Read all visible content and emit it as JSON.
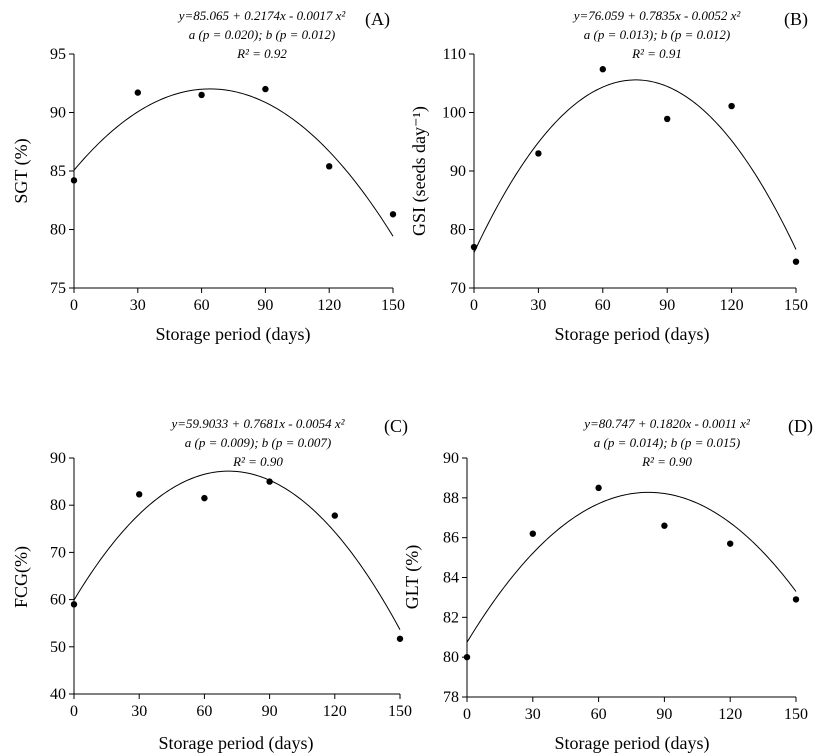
{
  "chart_data": [
    {
      "type": "scatter",
      "panel_label": "(A)",
      "equation": "y=85.065 + 0.2174x - 0.0017 x²",
      "significance": "a (p = 0.020); b (p = 0.012)",
      "r2": "R² = 0.92",
      "xlabel": "Storage period (days)",
      "ylabel": "SGT (%)",
      "xlim": [
        0,
        150
      ],
      "ylim": [
        75,
        95
      ],
      "xticks": [
        0,
        30,
        60,
        90,
        120,
        150
      ],
      "yticks": [
        75,
        80,
        85,
        90,
        95
      ],
      "x": [
        0,
        30,
        60,
        90,
        120,
        150
      ],
      "y": [
        84.2,
        91.7,
        91.5,
        92.0,
        85.4,
        81.3
      ],
      "fit": {
        "a": 85.065,
        "b": 0.2174,
        "c": -0.0017
      }
    },
    {
      "type": "scatter",
      "panel_label": "(B)",
      "equation": "y=76.059 + 0.7835x - 0.0052 x²",
      "significance": "a (p = 0.013); b (p = 0.012)",
      "r2": "R² = 0.91",
      "xlabel": "Storage period (days)",
      "ylabel": "GSI (seeds day⁻¹)",
      "xlim": [
        0,
        150
      ],
      "ylim": [
        70,
        110
      ],
      "xticks": [
        0,
        30,
        60,
        90,
        120,
        150
      ],
      "yticks": [
        70,
        80,
        90,
        100,
        110
      ],
      "x": [
        0,
        30,
        60,
        90,
        120,
        150
      ],
      "y": [
        77.0,
        93.0,
        107.4,
        98.9,
        101.1,
        74.5
      ],
      "fit": {
        "a": 76.059,
        "b": 0.7835,
        "c": -0.0052
      }
    },
    {
      "type": "scatter",
      "panel_label": "(C)",
      "equation": "y=59.9033 + 0.7681x - 0.0054 x²",
      "significance": "a (p = 0.009); b (p = 0.007)",
      "r2": "R² = 0.90",
      "xlabel": "Storage period (days)",
      "ylabel": "FCG(%)",
      "xlim": [
        0,
        150
      ],
      "ylim": [
        40,
        90
      ],
      "xticks": [
        0,
        30,
        60,
        90,
        120,
        150
      ],
      "yticks": [
        40,
        50,
        60,
        70,
        80,
        90
      ],
      "x": [
        0,
        30,
        60,
        90,
        120,
        150
      ],
      "y": [
        59.0,
        82.3,
        81.5,
        85.0,
        77.8,
        51.7
      ],
      "fit": {
        "a": 59.9033,
        "b": 0.7681,
        "c": -0.0054
      }
    },
    {
      "type": "scatter",
      "panel_label": "(D)",
      "equation": "y=80.747 + 0.1820x - 0.0011 x²",
      "significance": "a (p = 0.014); b (p = 0.015)",
      "r2": "R² = 0.90",
      "xlabel": "Storage period (days)",
      "ylabel": "GLT (%)",
      "xlim": [
        0,
        150
      ],
      "ylim": [
        78,
        90
      ],
      "xticks": [
        0,
        30,
        60,
        90,
        120,
        150
      ],
      "yticks": [
        78,
        80,
        82,
        84,
        86,
        88,
        90
      ],
      "x": [
        0,
        30,
        60,
        90,
        120,
        150
      ],
      "y": [
        80.0,
        86.2,
        88.5,
        86.6,
        85.7,
        82.9
      ],
      "fit": {
        "a": 80.747,
        "b": 0.182,
        "c": -0.0011
      }
    }
  ]
}
